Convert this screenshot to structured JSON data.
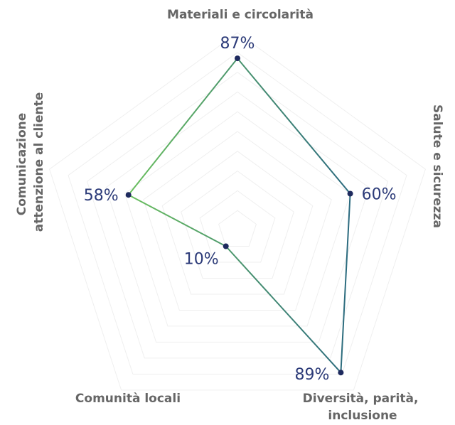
{
  "chart_data": {
    "type": "radar",
    "categories": [
      "Materiali e circolarità",
      "Salute e sicurezza",
      "Diversità, parità, inclusione",
      "Comunità locali",
      "Comunicazione attenzione al cliente"
    ],
    "values": [
      87,
      60,
      89,
      10,
      58
    ],
    "value_labels": [
      "87%",
      "60%",
      "89%",
      "10%",
      "58%"
    ],
    "unit": "%",
    "range": [
      0,
      100
    ],
    "grid": true,
    "colors": {
      "line_start": "#6abf5e",
      "line_end": "#2b6a7f",
      "point": "#1e2a5e",
      "value_text": "#2b3a78",
      "axis_text": "#666666",
      "grid": "#efefef"
    }
  }
}
